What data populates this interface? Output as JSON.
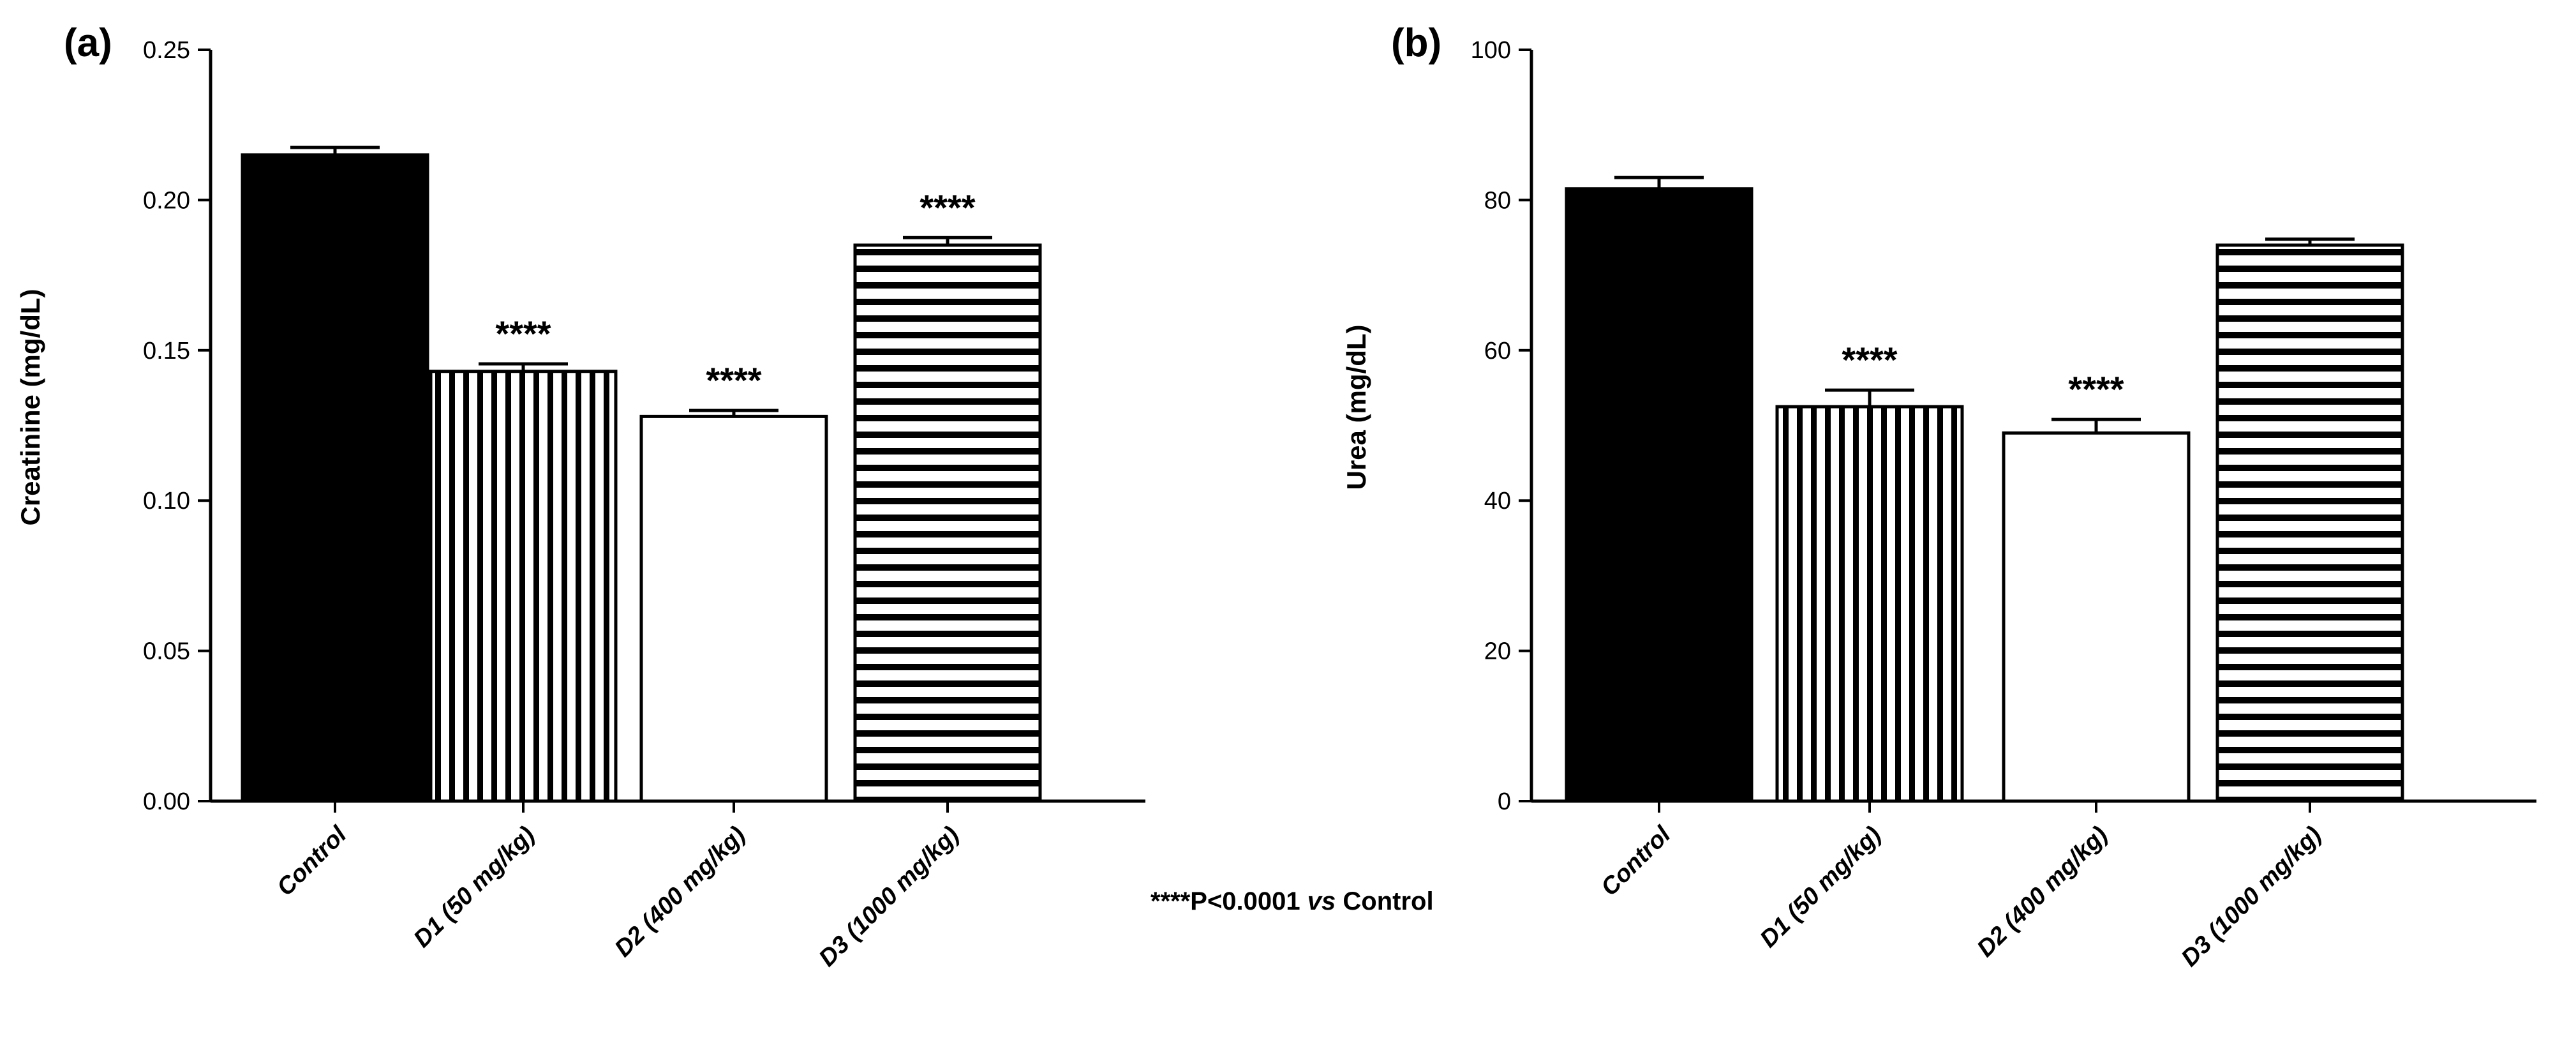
{
  "chart_data": [
    {
      "type": "bar",
      "panel_label": "(a)",
      "ylabel": "Creatinine (mg/dL)",
      "ylim": [
        0,
        0.25
      ],
      "yticks": [
        "0.00",
        "0.05",
        "0.10",
        "0.15",
        "0.20",
        "0.25"
      ],
      "ytick_values": [
        0,
        0.05,
        0.1,
        0.15,
        0.2,
        0.25
      ],
      "categories": [
        "Control",
        "D1 (50 mg/kg)",
        "D2 (400 mg/kg)",
        "D3 (1000 mg/kg)"
      ],
      "values": [
        0.215,
        0.143,
        0.128,
        0.185
      ],
      "errors": [
        0.0025,
        0.0025,
        0.002,
        0.0025
      ],
      "patterns": [
        "solid",
        "vertical",
        "empty",
        "horizontal"
      ],
      "annotations": [
        "",
        "****",
        "****",
        "****"
      ]
    },
    {
      "type": "bar",
      "panel_label": "(b)",
      "ylabel": "Urea (mg/dL)",
      "ylim": [
        0,
        100
      ],
      "yticks": [
        "0",
        "20",
        "40",
        "60",
        "80",
        "100"
      ],
      "ytick_values": [
        0,
        20,
        40,
        60,
        80,
        100
      ],
      "categories": [
        "Control",
        "D1 (50 mg/kg)",
        "D2 (400 mg/kg)",
        "D3 (1000 mg/kg)"
      ],
      "values": [
        81.5,
        52.5,
        49,
        74
      ],
      "errors": [
        1.5,
        2.2,
        1.8,
        0.8
      ],
      "patterns": [
        "solid",
        "vertical",
        "empty",
        "horizontal"
      ],
      "annotations": [
        "",
        "****",
        "****",
        ""
      ]
    }
  ],
  "footnote": {
    "prefix": "****P<0.0001 ",
    "vs": "vs",
    "suffix": " Control"
  }
}
